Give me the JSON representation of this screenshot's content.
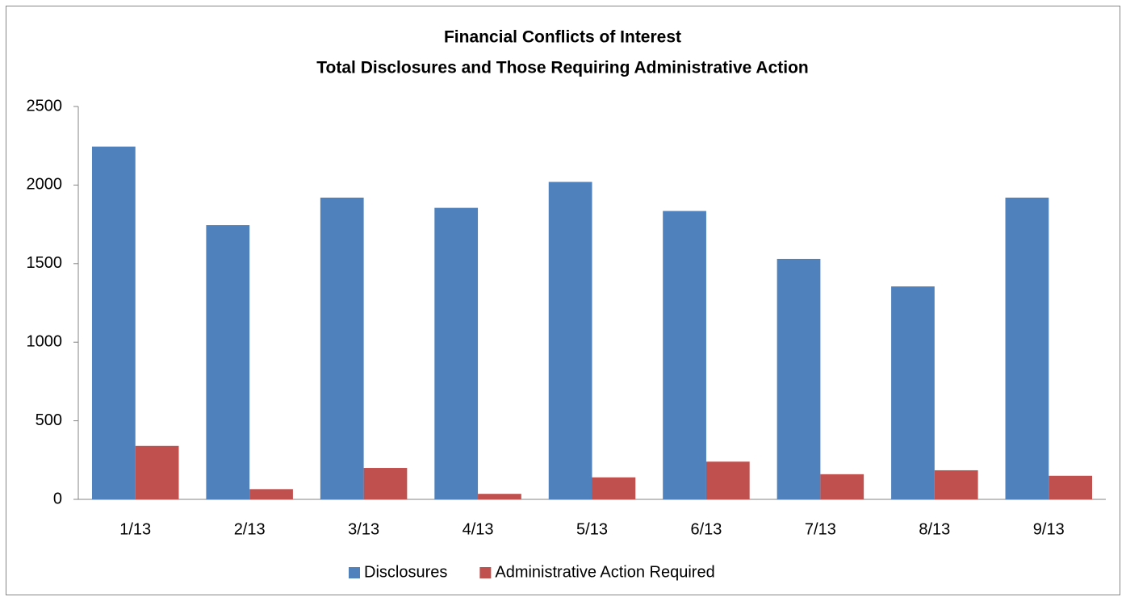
{
  "chart_data": {
    "type": "bar",
    "title": [
      "Financial Conflicts of Interest",
      "Total Disclosures and Those Requiring Administrative Action"
    ],
    "categories": [
      "1/13",
      "2/13",
      "3/13",
      "4/13",
      "5/13",
      "6/13",
      "7/13",
      "8/13",
      "9/13"
    ],
    "series": [
      {
        "name": "Disclosures",
        "color": "#4f81bd",
        "values": [
          2245,
          1745,
          1920,
          1855,
          2020,
          1835,
          1530,
          1355,
          1920
        ]
      },
      {
        "name": "Administrative Action Required",
        "color": "#c0504d",
        "values": [
          340,
          65,
          200,
          35,
          140,
          240,
          160,
          185,
          150
        ]
      }
    ],
    "ylim": [
      0,
      2500
    ],
    "yticks": [
      0,
      500,
      1000,
      1500,
      2000,
      2500
    ],
    "grid": false,
    "legend": "bottom"
  }
}
